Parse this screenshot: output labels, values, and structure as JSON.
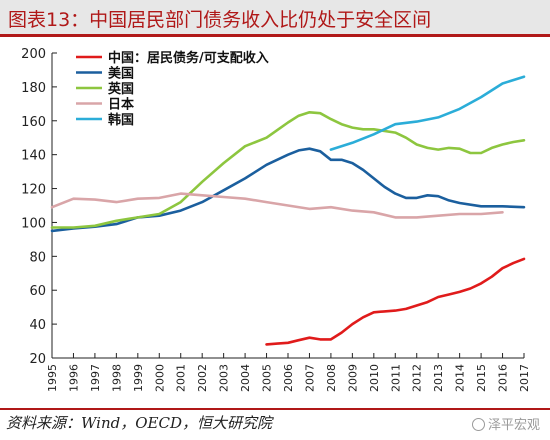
{
  "title": "图表13：中国居民部门债务收入比仍处于安全区间",
  "source": "资料来源：Wind，OECD，恒大研究院",
  "watermark": "泽平宏观",
  "chart_data": {
    "type": "line",
    "x_ticks": [
      "1995",
      "1996",
      "1997",
      "1998",
      "1999",
      "2000",
      "2001",
      "2002",
      "2003",
      "2004",
      "2005",
      "2006",
      "2007",
      "2008",
      "2009",
      "2010",
      "2011",
      "2012",
      "2013",
      "2014",
      "2015",
      "2016",
      "2017"
    ],
    "ylim": [
      20,
      200
    ],
    "yticks": [
      20,
      40,
      60,
      80,
      100,
      120,
      140,
      160,
      180,
      200
    ],
    "legend_position": "top-left",
    "grid": false,
    "series": [
      {
        "name": "中国：居民债务/可支配收入",
        "color": "#e01b1b",
        "points": [
          [
            2005,
            28
          ],
          [
            2005.5,
            28.5
          ],
          [
            2006,
            29
          ],
          [
            2006.5,
            30.5
          ],
          [
            2007,
            32
          ],
          [
            2007.5,
            31
          ],
          [
            2008,
            31
          ],
          [
            2008.5,
            35
          ],
          [
            2009,
            40
          ],
          [
            2009.5,
            44
          ],
          [
            2010,
            47
          ],
          [
            2010.5,
            47.5
          ],
          [
            2011,
            48
          ],
          [
            2011.5,
            49
          ],
          [
            2012,
            51
          ],
          [
            2012.5,
            53
          ],
          [
            2013,
            56
          ],
          [
            2013.5,
            57.5
          ],
          [
            2014,
            59
          ],
          [
            2014.5,
            61
          ],
          [
            2015,
            64
          ],
          [
            2015.5,
            68
          ],
          [
            2016,
            73
          ],
          [
            2016.5,
            76
          ],
          [
            2017,
            78.5
          ]
        ]
      },
      {
        "name": "美国",
        "color": "#1b5f9e",
        "points": [
          [
            1995,
            95
          ],
          [
            1996,
            96.5
          ],
          [
            1997,
            97.5
          ],
          [
            1998,
            99
          ],
          [
            1999,
            103
          ],
          [
            2000,
            104
          ],
          [
            2001,
            107
          ],
          [
            2002,
            112
          ],
          [
            2003,
            119
          ],
          [
            2004,
            126
          ],
          [
            2005,
            134
          ],
          [
            2006,
            140
          ],
          [
            2006.5,
            142.5
          ],
          [
            2007,
            143.5
          ],
          [
            2007.5,
            142
          ],
          [
            2008,
            137
          ],
          [
            2008.5,
            137
          ],
          [
            2009,
            135
          ],
          [
            2009.5,
            131
          ],
          [
            2010,
            126
          ],
          [
            2010.5,
            121
          ],
          [
            2011,
            117
          ],
          [
            2011.5,
            114.5
          ],
          [
            2012,
            114.5
          ],
          [
            2012.5,
            116
          ],
          [
            2013,
            115.5
          ],
          [
            2013.5,
            113
          ],
          [
            2014,
            111.5
          ],
          [
            2015,
            109.5
          ],
          [
            2016,
            109.5
          ],
          [
            2017,
            109
          ]
        ]
      },
      {
        "name": "英国",
        "color": "#8dc63f",
        "points": [
          [
            1995,
            97
          ],
          [
            1996,
            97
          ],
          [
            1997,
            98
          ],
          [
            1998,
            101
          ],
          [
            1999,
            103
          ],
          [
            2000,
            105
          ],
          [
            2001,
            112
          ],
          [
            2002,
            124
          ],
          [
            2003,
            135
          ],
          [
            2004,
            145
          ],
          [
            2005,
            150
          ],
          [
            2006,
            159
          ],
          [
            2006.5,
            163
          ],
          [
            2007,
            165
          ],
          [
            2007.5,
            164.5
          ],
          [
            2008,
            161
          ],
          [
            2008.5,
            158
          ],
          [
            2009,
            156
          ],
          [
            2009.5,
            155
          ],
          [
            2010,
            155
          ],
          [
            2011,
            153
          ],
          [
            2011.5,
            150
          ],
          [
            2012,
            146
          ],
          [
            2012.5,
            144
          ],
          [
            2013,
            143
          ],
          [
            2013.5,
            144
          ],
          [
            2014,
            143.5
          ],
          [
            2014.5,
            141
          ],
          [
            2015,
            141
          ],
          [
            2015.5,
            144
          ],
          [
            2016,
            146
          ],
          [
            2016.5,
            147.5
          ],
          [
            2017,
            148.5
          ]
        ]
      },
      {
        "name": "日本",
        "color": "#d9a5a8",
        "points": [
          [
            1995,
            109
          ],
          [
            1996,
            114
          ],
          [
            1997,
            113.5
          ],
          [
            1998,
            112
          ],
          [
            1999,
            114
          ],
          [
            2000,
            114.5
          ],
          [
            2001,
            117
          ],
          [
            2002,
            116
          ],
          [
            2003,
            115
          ],
          [
            2004,
            114
          ],
          [
            2005,
            112
          ],
          [
            2006,
            110
          ],
          [
            2007,
            108
          ],
          [
            2008,
            109
          ],
          [
            2009,
            107
          ],
          [
            2010,
            106
          ],
          [
            2011,
            103
          ],
          [
            2012,
            103
          ],
          [
            2013,
            104
          ],
          [
            2014,
            105
          ],
          [
            2015,
            105
          ],
          [
            2016,
            106
          ]
        ]
      },
      {
        "name": "韩国",
        "color": "#2badd8",
        "points": [
          [
            2008,
            143
          ],
          [
            2009,
            147
          ],
          [
            2010,
            152
          ],
          [
            2011,
            158
          ],
          [
            2012,
            159.5
          ],
          [
            2013,
            162
          ],
          [
            2014,
            167
          ],
          [
            2015,
            174
          ],
          [
            2016,
            182
          ],
          [
            2017,
            186
          ]
        ]
      }
    ]
  }
}
